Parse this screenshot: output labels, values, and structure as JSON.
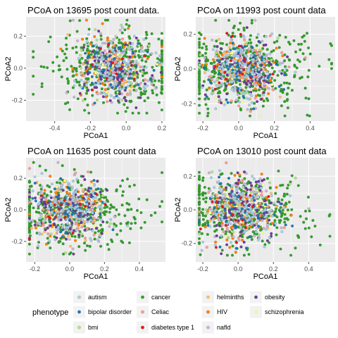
{
  "chart_data": [
    {
      "type": "scatter",
      "title": "PCoA on 13695 post count data.",
      "xlabel": "PCoA1",
      "ylabel": "PCoA2",
      "xlim": [
        -0.56,
        0.22
      ],
      "ylim": [
        -0.33,
        0.32
      ],
      "x_ticks": [
        -0.4,
        -0.2,
        0.0,
        0.2
      ],
      "x_tick_labels": [
        "-0.4",
        "-0.2",
        "0.0",
        "0.2"
      ],
      "y_ticks": [
        -0.2,
        0.0,
        0.2
      ],
      "y_tick_labels": [
        "-0.2",
        "0.0",
        "0.2"
      ],
      "grid": true,
      "cloud": {
        "x_range": [
          -0.52,
          0.2
        ],
        "y_range": [
          -0.28,
          0.3
        ],
        "center": [
          -0.06,
          0.0
        ]
      },
      "points_per_phenotype": {
        "autism": 120,
        "bipolar disorder": 60,
        "bmi": 40,
        "cancer": 380,
        "Celiac": 40,
        "diabetes type 1": 15,
        "helminths": 25,
        "HIV": 80,
        "nafld": 70,
        "obesity": 90,
        "schizophrenia": 25
      }
    },
    {
      "type": "scatter",
      "title": "PCoA on 11993 post count data",
      "xlabel": "PCoA1",
      "ylabel": "PCoA2",
      "xlim": [
        -0.24,
        0.54
      ],
      "ylim": [
        -0.3,
        0.3
      ],
      "x_ticks": [
        -0.2,
        0.0,
        0.2,
        0.4
      ],
      "x_tick_labels": [
        "-0.2",
        "0.0",
        "0.2",
        "0.4"
      ],
      "y_ticks": [
        -0.2,
        0.0,
        0.2
      ],
      "y_tick_labels": [
        "-0.2",
        "0.0",
        "0.2"
      ],
      "grid": true,
      "cloud": {
        "x_range": [
          -0.22,
          0.52
        ],
        "y_range": [
          -0.27,
          0.28
        ],
        "center": [
          0.02,
          0.0
        ]
      },
      "points_per_phenotype": {
        "autism": 120,
        "bipolar disorder": 60,
        "bmi": 40,
        "cancer": 380,
        "Celiac": 40,
        "diabetes type 1": 15,
        "helminths": 25,
        "HIV": 80,
        "nafld": 70,
        "obesity": 90,
        "schizophrenia": 25
      }
    },
    {
      "type": "scatter",
      "title": "PCoA on 11635 post count data",
      "xlabel": "PCoA1",
      "ylabel": "PCoA2",
      "xlim": [
        -0.25,
        0.55
      ],
      "ylim": [
        -0.33,
        0.33
      ],
      "x_ticks": [
        -0.2,
        0.0,
        0.2,
        0.4
      ],
      "x_tick_labels": [
        "-0.2",
        "0.0",
        "0.2",
        "0.4"
      ],
      "y_ticks": [
        -0.2,
        0.0,
        0.2
      ],
      "y_tick_labels": [
        "-0.2",
        "0.0",
        "0.2"
      ],
      "grid": true,
      "cloud": {
        "x_range": [
          -0.23,
          0.53
        ],
        "y_range": [
          -0.28,
          0.3
        ],
        "center": [
          0.0,
          0.0
        ]
      },
      "points_per_phenotype": {
        "autism": 120,
        "bipolar disorder": 60,
        "bmi": 40,
        "cancer": 380,
        "Celiac": 40,
        "diabetes type 1": 15,
        "helminths": 25,
        "HIV": 80,
        "nafld": 70,
        "obesity": 90,
        "schizophrenia": 25
      }
    },
    {
      "type": "scatter",
      "title": "PCoA on 13010 post count data",
      "xlabel": "PCoA1",
      "ylabel": "PCoA2",
      "xlim": [
        -0.24,
        0.55
      ],
      "ylim": [
        -0.31,
        0.31
      ],
      "x_ticks": [
        -0.2,
        0.0,
        0.2,
        0.4
      ],
      "x_tick_labels": [
        "-0.2",
        "0.0",
        "0.2",
        "0.4"
      ],
      "y_ticks": [
        -0.2,
        0.0,
        0.2
      ],
      "y_tick_labels": [
        "-0.2",
        "0.0",
        "0.2"
      ],
      "grid": true,
      "cloud": {
        "x_range": [
          -0.22,
          0.52
        ],
        "y_range": [
          -0.27,
          0.28
        ],
        "center": [
          0.02,
          0.0
        ]
      },
      "points_per_phenotype": {
        "autism": 120,
        "bipolar disorder": 60,
        "bmi": 40,
        "cancer": 380,
        "Celiac": 40,
        "diabetes type 1": 15,
        "helminths": 25,
        "HIV": 80,
        "nafld": 70,
        "obesity": 90,
        "schizophrenia": 25
      }
    }
  ],
  "legend": {
    "title": "phenotype",
    "position": "bottom",
    "items": [
      {
        "label": "autism",
        "color": "#a6cee3"
      },
      {
        "label": "bipolar disorder",
        "color": "#1f78b4"
      },
      {
        "label": "bmi",
        "color": "#b2df8a"
      },
      {
        "label": "cancer",
        "color": "#33a02c"
      },
      {
        "label": "Celiac",
        "color": "#fb9a99"
      },
      {
        "label": "diabetes type 1",
        "color": "#e31a1c"
      },
      {
        "label": "helminths",
        "color": "#fdbf6f"
      },
      {
        "label": "HIV",
        "color": "#ff7f00"
      },
      {
        "label": "nafld",
        "color": "#cab2d6"
      },
      {
        "label": "obesity",
        "color": "#6a3d9a"
      },
      {
        "label": "schizophrenia",
        "color": "#ffff99"
      }
    ]
  },
  "style": {
    "panel_background": "#ebebeb",
    "grid_color": "#ffffff",
    "text_color": "#000000",
    "tick_color": "#4d4d4d"
  }
}
